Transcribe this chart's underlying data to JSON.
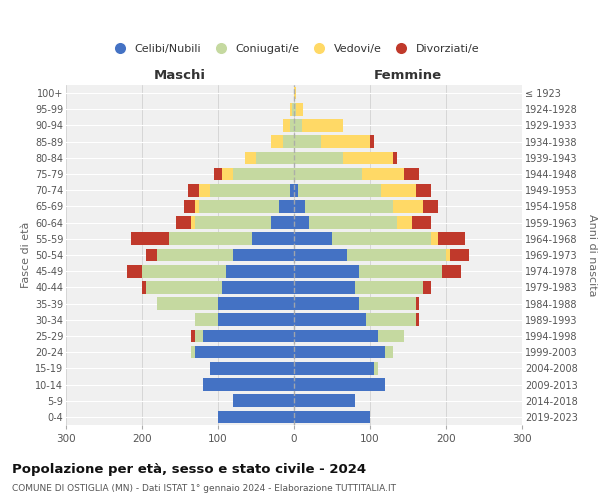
{
  "age_groups": [
    "0-4",
    "5-9",
    "10-14",
    "15-19",
    "20-24",
    "25-29",
    "30-34",
    "35-39",
    "40-44",
    "45-49",
    "50-54",
    "55-59",
    "60-64",
    "65-69",
    "70-74",
    "75-79",
    "80-84",
    "85-89",
    "90-94",
    "95-99",
    "100+"
  ],
  "birth_years": [
    "2019-2023",
    "2014-2018",
    "2009-2013",
    "2004-2008",
    "1999-2003",
    "1994-1998",
    "1989-1993",
    "1984-1988",
    "1979-1983",
    "1974-1978",
    "1969-1973",
    "1964-1968",
    "1959-1963",
    "1954-1958",
    "1949-1953",
    "1944-1948",
    "1939-1943",
    "1934-1938",
    "1929-1933",
    "1924-1928",
    "≤ 1923"
  ],
  "maschi": {
    "celibi": [
      100,
      80,
      120,
      110,
      130,
      120,
      100,
      100,
      95,
      90,
      80,
      55,
      30,
      20,
      5,
      0,
      0,
      0,
      0,
      0,
      0
    ],
    "coniugati": [
      0,
      0,
      0,
      0,
      5,
      10,
      30,
      80,
      100,
      110,
      100,
      110,
      100,
      105,
      105,
      80,
      50,
      15,
      5,
      2,
      0
    ],
    "vedovi": [
      0,
      0,
      0,
      0,
      0,
      0,
      0,
      0,
      0,
      0,
      0,
      0,
      5,
      5,
      15,
      15,
      15,
      15,
      10,
      3,
      0
    ],
    "divorziati": [
      0,
      0,
      0,
      0,
      0,
      5,
      0,
      0,
      5,
      20,
      15,
      50,
      20,
      15,
      15,
      10,
      0,
      0,
      0,
      0,
      0
    ]
  },
  "femmine": {
    "nubili": [
      100,
      80,
      120,
      105,
      120,
      110,
      95,
      85,
      80,
      85,
      70,
      50,
      20,
      15,
      5,
      0,
      0,
      0,
      0,
      0,
      0
    ],
    "coniugate": [
      0,
      0,
      0,
      5,
      10,
      35,
      65,
      75,
      90,
      110,
      130,
      130,
      115,
      115,
      110,
      90,
      65,
      35,
      10,
      2,
      0
    ],
    "vedove": [
      0,
      0,
      0,
      0,
      0,
      0,
      0,
      0,
      0,
      0,
      5,
      10,
      20,
      40,
      45,
      55,
      65,
      65,
      55,
      10,
      2
    ],
    "divorziate": [
      0,
      0,
      0,
      0,
      0,
      0,
      5,
      5,
      10,
      25,
      25,
      35,
      25,
      20,
      20,
      20,
      5,
      5,
      0,
      0,
      0
    ]
  },
  "colors": {
    "celibi_nubili": "#4472c4",
    "coniugati": "#c5d9a0",
    "vedovi": "#ffd966",
    "divorziati": "#c0392b"
  },
  "title": "Popolazione per età, sesso e stato civile - 2024",
  "subtitle": "COMUNE DI OSTIGLIA (MN) - Dati ISTAT 1° gennaio 2024 - Elaborazione TUTTITALIA.IT",
  "xlabel_left": "Maschi",
  "xlabel_right": "Femmine",
  "ylabel_left": "Fasce di età",
  "ylabel_right": "Anni di nascita",
  "xlim": 300,
  "legend_labels": [
    "Celibi/Nubili",
    "Coniugati/e",
    "Vedovi/e",
    "Divorziati/e"
  ],
  "background_color": "#ffffff",
  "plot_bg_color": "#f0f0f0",
  "grid_color": "#ffffff"
}
